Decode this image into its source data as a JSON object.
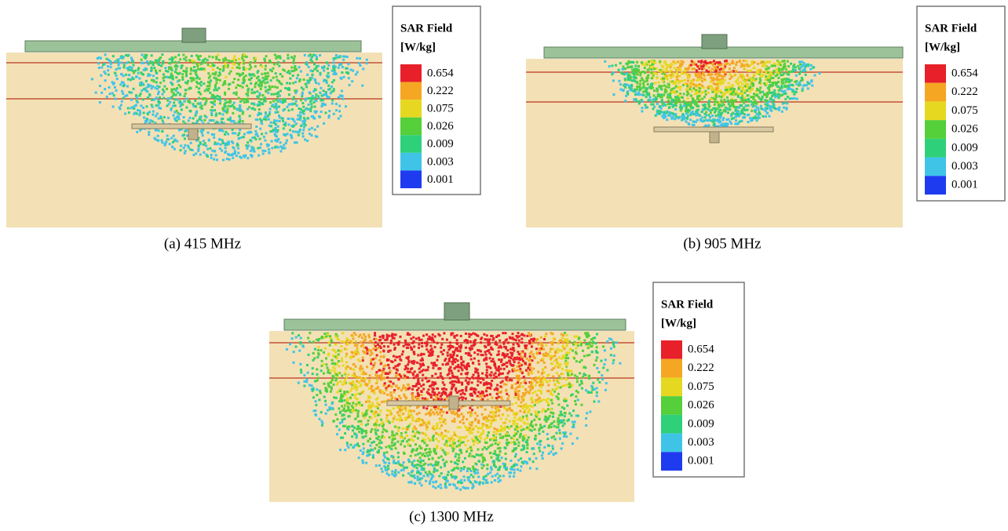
{
  "panels": [
    {
      "caption": "(a) 415 MHz",
      "legend": {
        "title": [
          "SAR Field",
          "[W/kg]"
        ],
        "labels": [
          "0.654",
          "0.222",
          "0.075",
          "0.026",
          "0.009",
          "0.003",
          "0.001"
        ]
      }
    },
    {
      "caption": "(b) 905 MHz",
      "legend": {
        "title": [
          "SAR Field",
          "[W/kg]"
        ],
        "labels": [
          "0.654",
          "0.222",
          "0.075",
          "0.026",
          "0.009",
          "0.003",
          "0.001"
        ]
      }
    },
    {
      "caption": "(c) 1300 MHz",
      "legend": {
        "title": [
          "SAR Field",
          "[W/kg]"
        ],
        "labels": [
          "0.654",
          "0.222",
          "0.075",
          "0.026",
          "0.009",
          "0.003",
          "0.001"
        ]
      }
    }
  ]
}
